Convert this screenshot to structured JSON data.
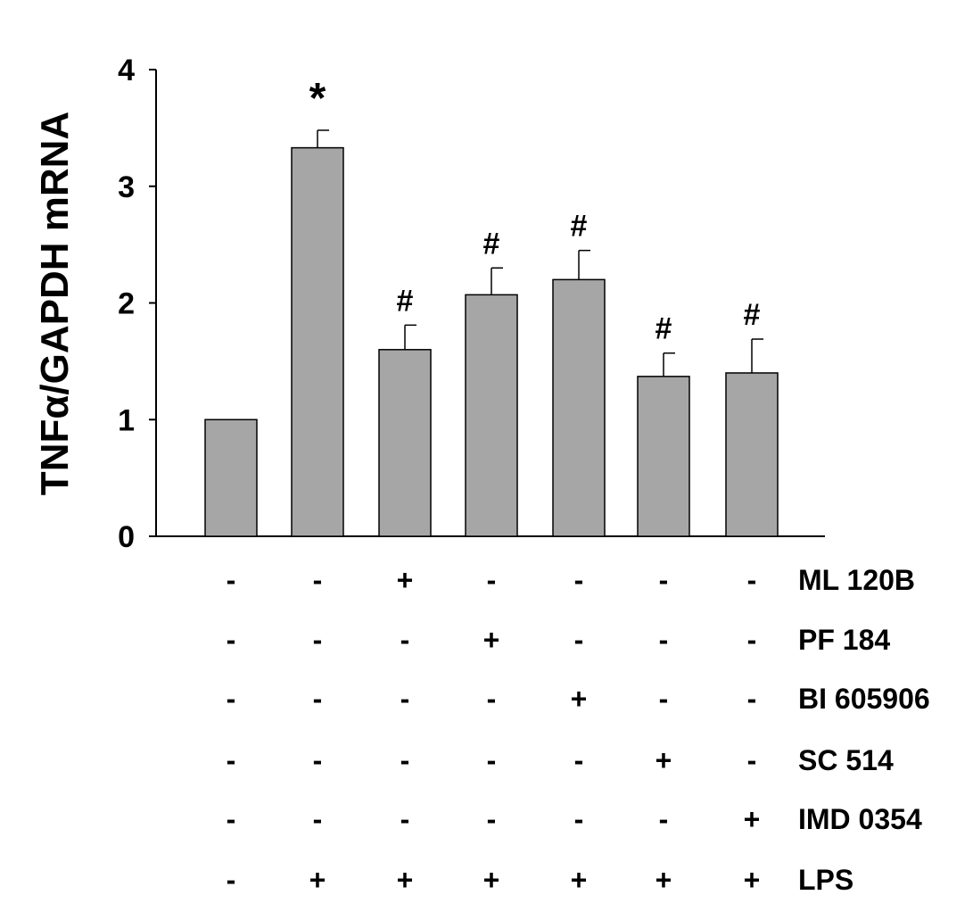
{
  "chart_data": {
    "type": "bar",
    "ylabel": "TNFα/GAPDH mRNA",
    "ylim": [
      0,
      4
    ],
    "yticks": [
      0,
      1,
      2,
      3,
      4
    ],
    "grid": false,
    "bar_color": "#a6a6a6",
    "values": [
      1.0,
      3.33,
      1.6,
      2.07,
      2.2,
      1.37,
      1.4
    ],
    "errors": [
      0.0,
      0.15,
      0.21,
      0.23,
      0.25,
      0.2,
      0.29
    ],
    "annotations": [
      "",
      "*",
      "#",
      "#",
      "#",
      "#",
      "#"
    ],
    "treatments": [
      {
        "label": "ML 120B",
        "signs": [
          "-",
          "-",
          "+",
          "-",
          "-",
          "-",
          "-"
        ]
      },
      {
        "label": "PF 184",
        "signs": [
          "-",
          "-",
          "-",
          "+",
          "-",
          "-",
          "-"
        ]
      },
      {
        "label": "BI 605906",
        "signs": [
          "-",
          "-",
          "-",
          "-",
          "+",
          "-",
          "-"
        ]
      },
      {
        "label": "SC 514",
        "signs": [
          "-",
          "-",
          "-",
          "-",
          "-",
          "+",
          "-"
        ]
      },
      {
        "label": "IMD 0354",
        "signs": [
          "-",
          "-",
          "-",
          "-",
          "-",
          "-",
          "+"
        ]
      },
      {
        "label": "LPS",
        "signs": [
          "-",
          "+",
          "+",
          "+",
          "+",
          "+",
          "+"
        ]
      }
    ]
  }
}
